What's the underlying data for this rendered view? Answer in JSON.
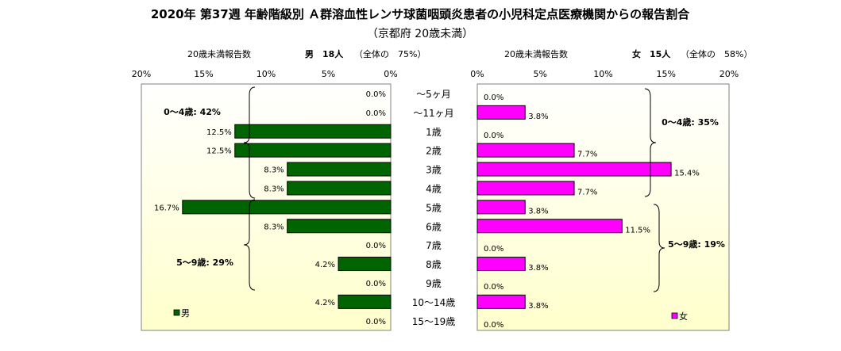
{
  "title": "2020年 第37週 年齢階級別 Ａ群溶血性レンサ球菌咽頭炎患者の小児科定点医療機関からの報告割合",
  "subtitle": "（京都府 20歳未満）",
  "colors": {
    "male": "#006400",
    "female": "#ff00ff",
    "panel_top": "#ffffff",
    "panel_bottom": "#ffffcc"
  },
  "chart_data": {
    "type": "bar",
    "categories": [
      "～5ヶ月",
      "～11ヶ月",
      "1歳",
      "2歳",
      "3歳",
      "4歳",
      "5歳",
      "6歳",
      "7歳",
      "8歳",
      "9歳",
      "10～14歳",
      "15～19歳"
    ],
    "series": [
      {
        "name": "男",
        "header_left": "20歳未満報告数",
        "header_count": "男　18人",
        "header_share": "（全体の　75%）",
        "values": [
          0.0,
          0.0,
          12.5,
          12.5,
          8.3,
          8.3,
          16.7,
          8.3,
          0.0,
          4.2,
          0.0,
          4.2,
          0.0
        ],
        "labels": [
          "0.0%",
          "0.0%",
          "12.5%",
          "12.5%",
          "8.3%",
          "8.3%",
          "16.7%",
          "8.3%",
          "0.0%",
          "4.2%",
          "0.0%",
          "4.2%",
          "0.0%"
        ],
        "brackets": [
          {
            "label": "0～4歳: 42%",
            "from": 0,
            "to": 5
          },
          {
            "label": "5～9歳: 29%",
            "from": 6,
            "to": 10
          }
        ],
        "axis_ticks": [
          "20%",
          "15%",
          "10%",
          "5%",
          "0%"
        ],
        "xlim": [
          20,
          0
        ]
      },
      {
        "name": "女",
        "header_left": "20歳未満報告数",
        "header_count": "女　15人",
        "header_share": "（全体の　58%）",
        "values": [
          0.0,
          3.8,
          0.0,
          7.7,
          15.4,
          7.7,
          3.8,
          11.5,
          0.0,
          3.8,
          0.0,
          3.8,
          0.0
        ],
        "labels": [
          "0.0%",
          "3.8%",
          "0.0%",
          "7.7%",
          "15.4%",
          "7.7%",
          "3.8%",
          "11.5%",
          "0.0%",
          "3.8%",
          "0.0%",
          "3.8%",
          "0.0%"
        ],
        "brackets": [
          {
            "label": "0～4歳: 35%",
            "from": 0,
            "to": 5
          },
          {
            "label": "5～9歳: 19%",
            "from": 6,
            "to": 10
          }
        ],
        "axis_ticks": [
          "0%",
          "5%",
          "10%",
          "15%",
          "20%"
        ],
        "xlim": [
          0,
          20
        ]
      }
    ]
  }
}
